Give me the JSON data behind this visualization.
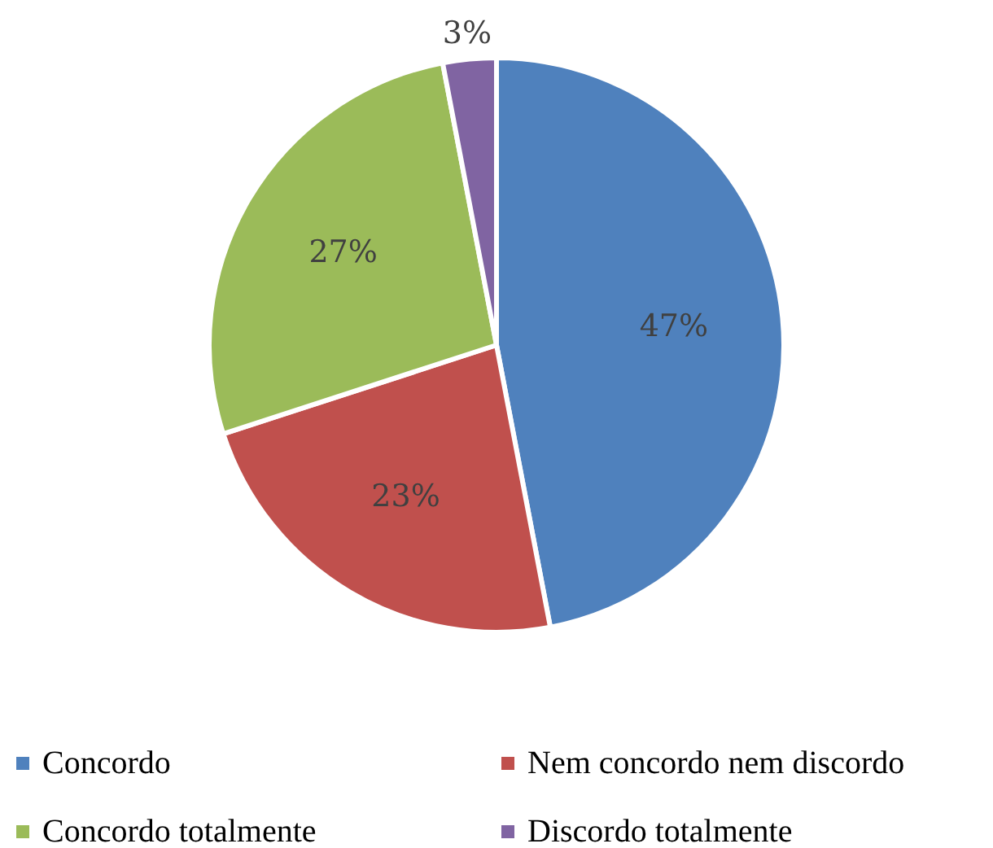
{
  "chart_data": {
    "type": "pie",
    "categories": [
      "Concordo",
      "Nem concordo nem discordo",
      "Concordo totalmente",
      "Discordo totalmente"
    ],
    "values": [
      47,
      23,
      27,
      3
    ],
    "colors": [
      "#4f81bd",
      "#c0504d",
      "#9bbb59",
      "#8064a2"
    ],
    "value_labels": [
      "47%",
      "23%",
      "27%",
      "3%"
    ],
    "legend": "bottom"
  }
}
